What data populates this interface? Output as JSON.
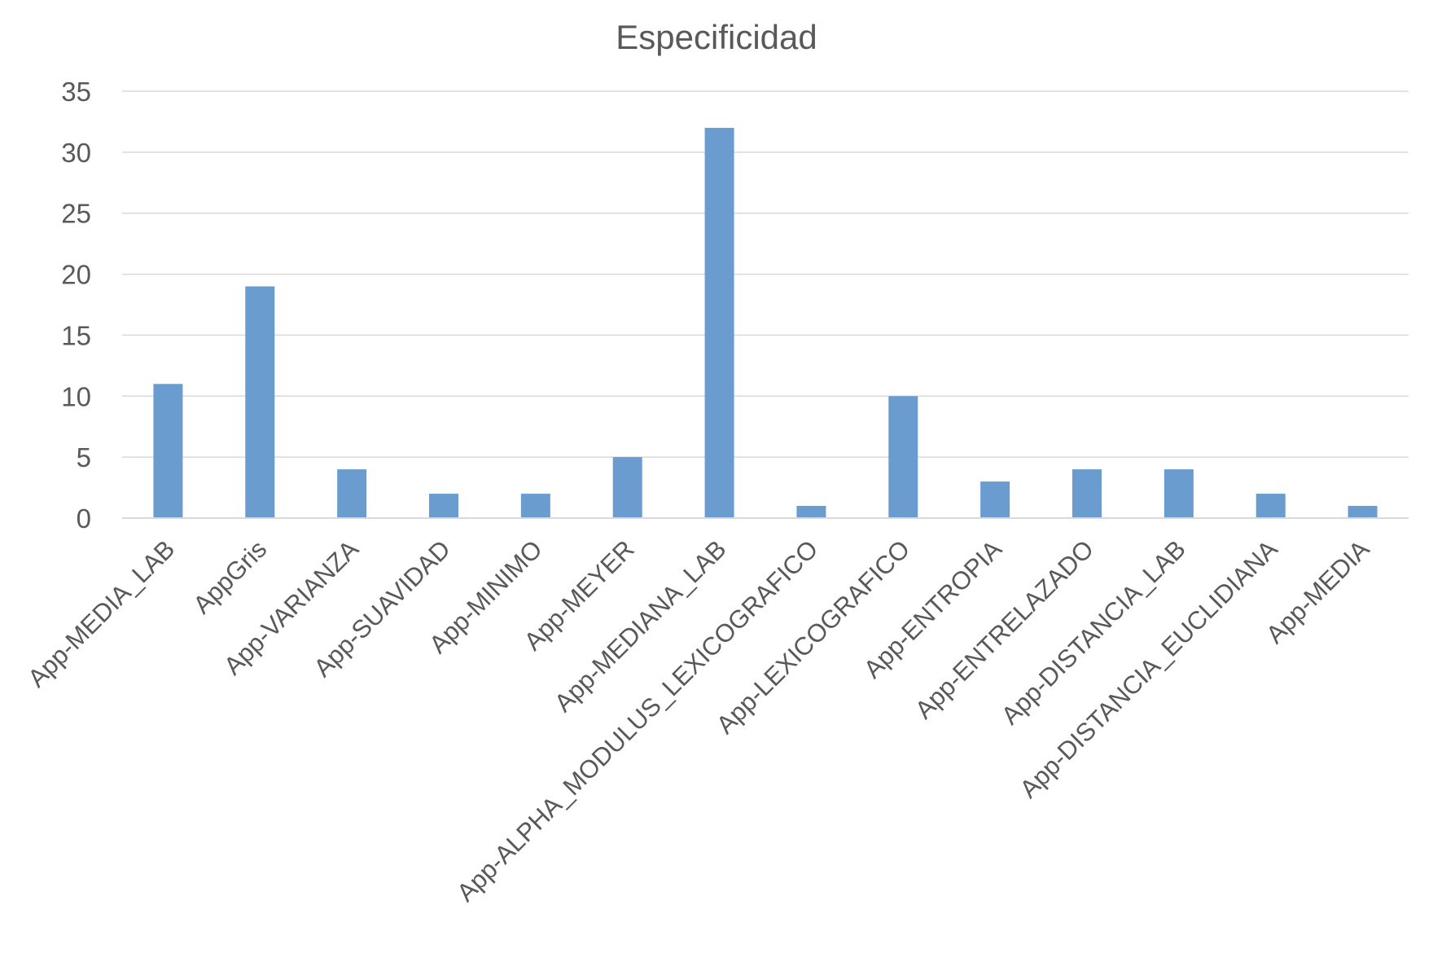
{
  "chart_data": {
    "type": "bar",
    "title": "Especificidad",
    "xlabel": "",
    "ylabel": "",
    "ylim": [
      0,
      35
    ],
    "yticks": [
      0,
      5,
      10,
      15,
      20,
      25,
      30,
      35
    ],
    "grid": true,
    "legend": "none",
    "bar_color": "#6a9ccf",
    "categories": [
      "App-MEDIA_LAB",
      "AppGris",
      "App-VARIANZA",
      "App-SUAVIDAD",
      "App-MINIMO",
      "App-MEYER",
      "App-MEDIANA_LAB",
      "App-ALPHA_MODULUS_LEXICOGRAFICO",
      "App-LEXICOGRAFICO",
      "App-ENTROPIA",
      "App-ENTRELAZADO",
      "App-DISTANCIA_LAB",
      "App-DISTANCIA_EUCLIDIANA",
      "App-MEDIA"
    ],
    "values": [
      11,
      19,
      4,
      2,
      2,
      5,
      32,
      1,
      10,
      3,
      4,
      4,
      2,
      1
    ]
  }
}
